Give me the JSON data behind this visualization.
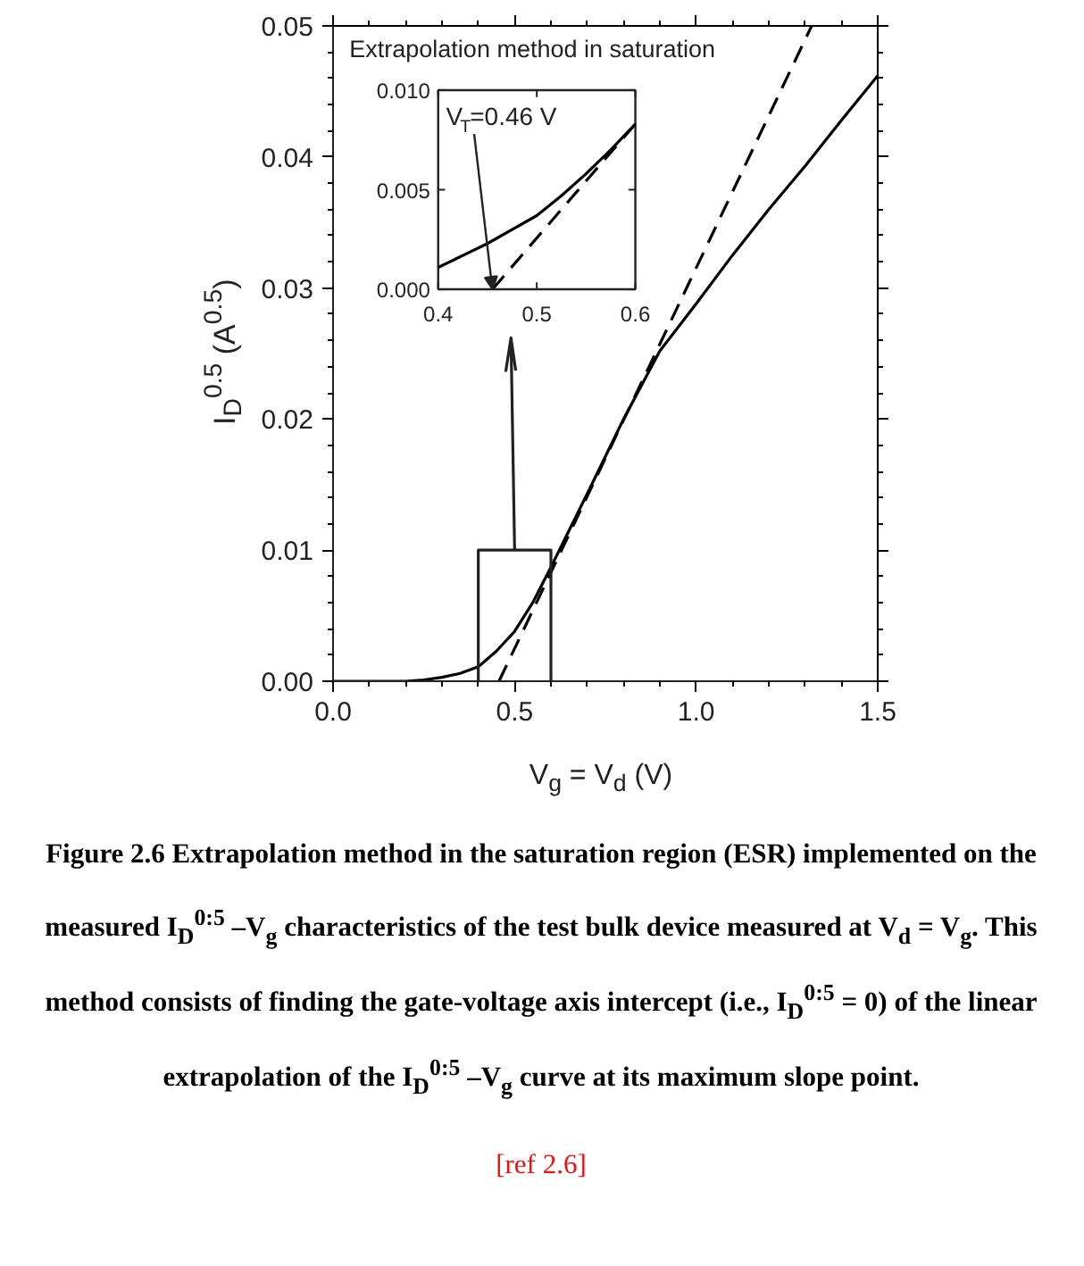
{
  "chart_data": [
    {
      "type": "line",
      "title": "Extrapolation method in saturation",
      "xlabel": "V$_{g}$ = V$_{d}$ (V)",
      "ylabel": "I$_{D}$$^{0.5}$ (A$^{0.5}$)",
      "xlim": [
        0,
        1.5
      ],
      "ylim": [
        0,
        0.05
      ],
      "xticks": [
        {
          "value": 0,
          "label": "0.0"
        },
        {
          "value": 0.1,
          "label": null
        },
        {
          "value": 0.2,
          "label": null
        },
        {
          "value": 0.3,
          "label": null
        },
        {
          "value": 0.4,
          "label": null
        },
        0.5,
        {
          "value": 0.6,
          "label": null
        },
        {
          "value": 0.7,
          "label": null
        },
        {
          "value": 0.8,
          "label": null
        },
        {
          "value": 0.9,
          "label": null
        },
        {
          "value": 1,
          "label": "1.0"
        },
        {
          "value": 1.1,
          "label": null
        },
        {
          "value": 1.2,
          "label": null
        },
        {
          "value": 1.3,
          "label": null
        },
        {
          "value": 1.4,
          "label": null
        },
        1.5
      ],
      "yticks": [
        {
          "value": 0,
          "label": "0.00"
        },
        {
          "value": 0.002,
          "label": null
        },
        {
          "value": 0.004,
          "label": null
        },
        {
          "value": 0.006,
          "label": null
        },
        {
          "value": 0.008,
          "label": null
        },
        0.01,
        {
          "value": 0.012,
          "label": null
        },
        {
          "value": 0.014,
          "label": null
        },
        {
          "value": 0.016,
          "label": null
        },
        {
          "value": 0.018,
          "label": null
        },
        0.02,
        {
          "value": 0.022,
          "label": null
        },
        {
          "value": 0.024,
          "label": null
        },
        {
          "value": 0.026,
          "label": null
        },
        {
          "value": 0.028,
          "label": null
        },
        0.03,
        {
          "value": 0.032,
          "label": null
        },
        {
          "value": 0.034,
          "label": null
        },
        {
          "value": 0.036,
          "label": null
        },
        {
          "value": 0.038,
          "label": null
        },
        0.04,
        {
          "value": 0.042,
          "label": null
        },
        {
          "value": 0.044,
          "label": null
        },
        {
          "value": 0.046,
          "label": null
        },
        {
          "value": 0.048,
          "label": null
        },
        0.05
      ],
      "series": [
        {
          "color": "#000000",
          "line_style": "solid",
          "x": [
            0,
            0.1,
            0.2,
            0.25,
            0.3,
            0.35,
            0.4,
            0.45,
            0.5,
            0.55,
            0.6,
            0.7,
            0.8,
            0.9,
            1.0,
            1.1,
            1.2,
            1.3,
            1.4,
            1.5
          ],
          "values": [
            0,
            0,
            0,
            0.0001,
            0.0003,
            0.0006,
            0.0011,
            0.0023,
            0.0038,
            0.006,
            0.0087,
            0.0143,
            0.02,
            0.0252,
            0.0288,
            0.0325,
            0.036,
            0.0393,
            0.0428,
            0.0462
          ]
        },
        {
          "color": "#000000",
          "line_style": "dashed",
          "x": [
            0.457,
            1.318
          ],
          "values": [
            0,
            0.05
          ]
        },
        {
          "color": "#222222",
          "line_style": "solid",
          "x": [
            0.4,
            0.4,
            0.6,
            0.6
          ],
          "values": [
            0,
            0.01,
            0.01,
            0
          ]
        },
        {
          "color": "#222222",
          "line_style": "solid",
          "x": [
            0.5,
            0.49,
            0.476,
            0.49,
            0.503
          ],
          "values": [
            0.01,
            0.0262,
            0.0237,
            0.0262,
            0.0237
          ]
        }
      ],
      "annotations": [
        "Figure 2.6 Extrapolation method in the saturation region (ESR) implemented on the measured I$_{D}$$^{0:5}$ –V$_{g}$ characteristics of the test bulk device measured at V$_{d}$ = V$_{g}$. This method consists of finding the gate-voltage axis intercept (i.e., I$_{D}$$^{0:5}$ = 0) of the linear extrapolation of the I$_{D}$$^{0:5}$ –V$_{g}$ curve at its maximum slope point.",
        "[ref 2.6]"
      ]
    },
    {
      "type": "line",
      "xlim": [
        0.4,
        0.6
      ],
      "ylim": [
        0,
        0.01
      ],
      "xticks": [
        0.4,
        0.5,
        0.6
      ],
      "yticks": [
        {
          "value": 0,
          "label": "0.000"
        },
        {
          "value": 0.005,
          "label": "0.005"
        },
        {
          "value": 0.01,
          "label": "0.010"
        }
      ],
      "series": [
        {
          "color": "#000000",
          "line_style": "solid",
          "x": [
            0.4,
            0.425,
            0.45,
            0.475,
            0.5,
            0.525,
            0.55,
            0.575,
            0.6
          ],
          "values": [
            0.0011,
            0.0017,
            0.0023,
            0.003,
            0.0037,
            0.0047,
            0.0058,
            0.007,
            0.0083
          ]
        },
        {
          "color": "#000000",
          "line_style": "dashed",
          "x": [
            0.455,
            0.6
          ],
          "values": [
            0,
            0.0083
          ]
        }
      ],
      "annotations": [
        {
          "text": "V$_{T}$=0.46 V",
          "x": 0.455,
          "y": 0
        }
      ]
    }
  ]
}
